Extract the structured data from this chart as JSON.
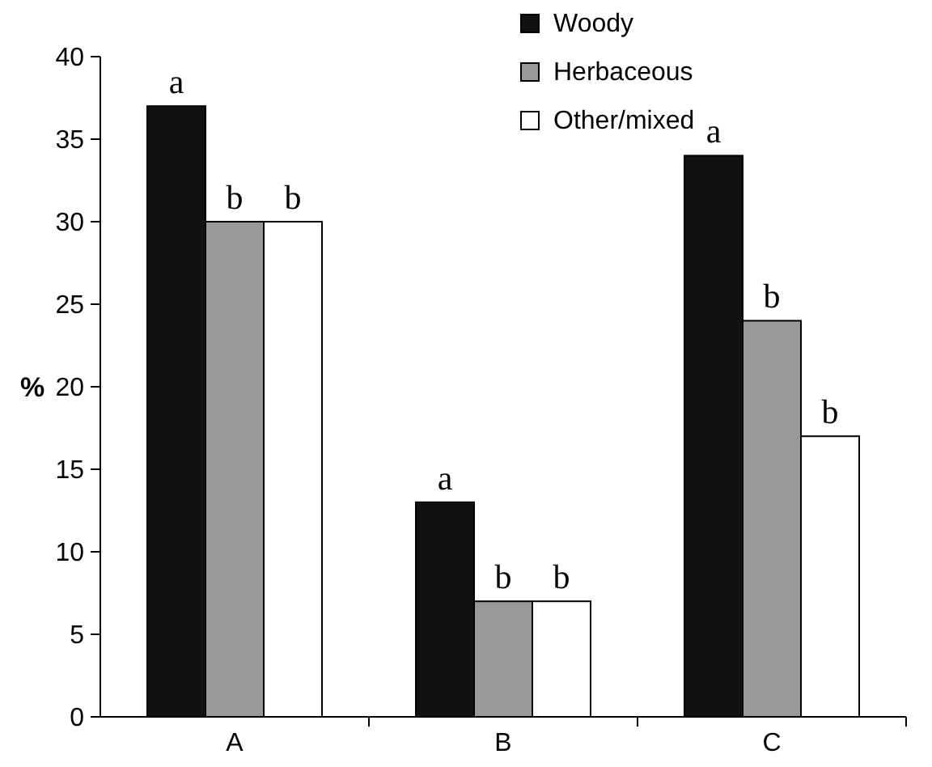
{
  "chart_data": {
    "type": "bar",
    "ylabel": "%",
    "categories": [
      "A",
      "B",
      "C"
    ],
    "series": [
      {
        "name": "Woody",
        "color": "#111111",
        "values": [
          37,
          13,
          34
        ],
        "value_labels": [
          "a",
          "a",
          "a"
        ]
      },
      {
        "name": "Herbaceous",
        "color": "#999999",
        "values": [
          30,
          7,
          24
        ],
        "value_labels": [
          "b",
          "b",
          "b"
        ]
      },
      {
        "name": "Other/mixed",
        "color": "#ffffff",
        "values": [
          30,
          7,
          17
        ],
        "value_labels": [
          "b",
          "b",
          "b"
        ]
      }
    ],
    "ylim": [
      0,
      40
    ],
    "yticks": [
      0,
      5,
      10,
      15,
      20,
      25,
      30,
      35,
      40
    ],
    "legend": "top right",
    "grid": false
  }
}
